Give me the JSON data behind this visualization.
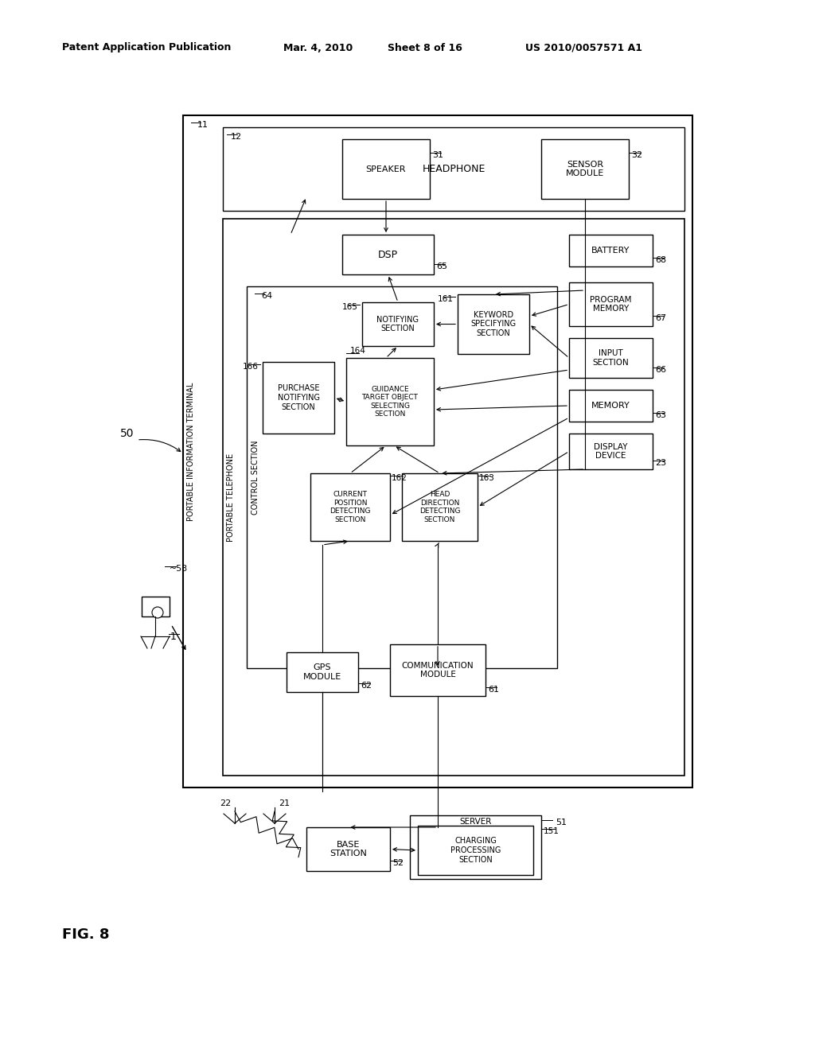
{
  "bg_color": "#ffffff",
  "header1": "Patent Application Publication",
  "header2": "Mar. 4, 2010",
  "header3": "Sheet 8 of 16",
  "header4": "US 2010/0057571 A1",
  "fig_label": "FIG. 8"
}
